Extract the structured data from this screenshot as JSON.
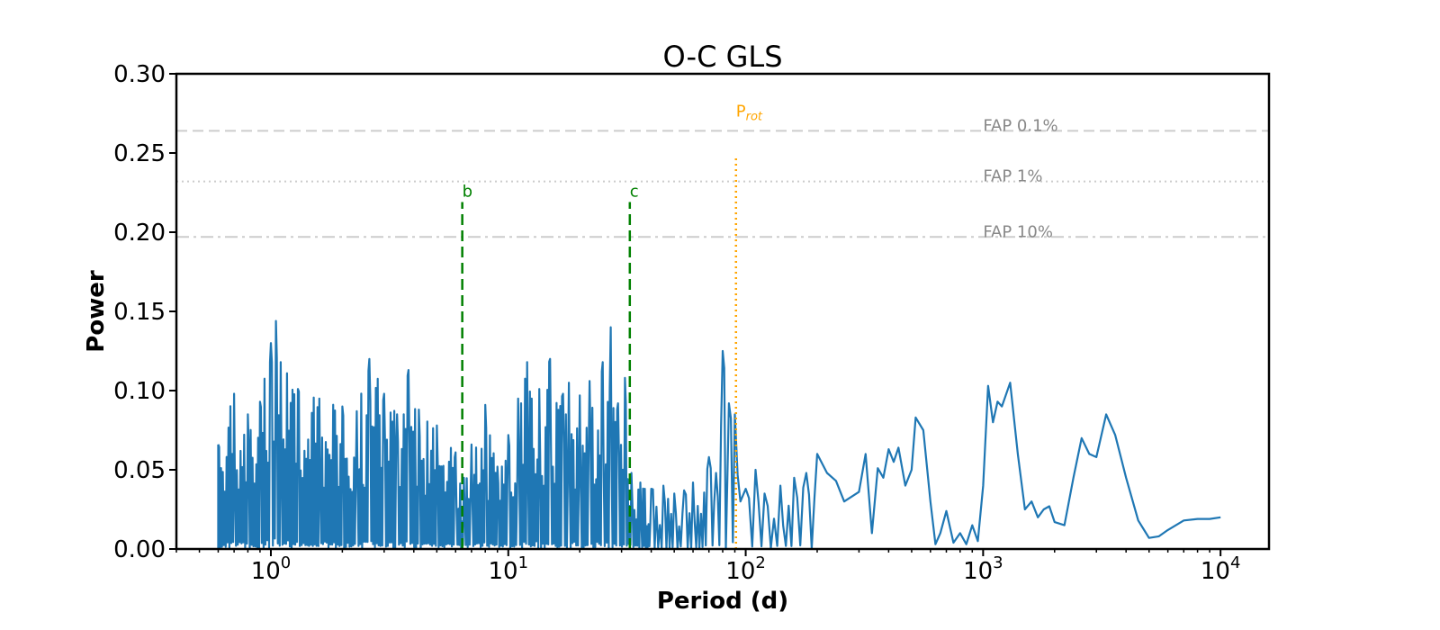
{
  "chart_data": {
    "type": "line",
    "title": "O-C GLS",
    "xlabel": "Period (d)",
    "ylabel": "Power",
    "xscale": "log",
    "xlim": [
      0.4,
      16000
    ],
    "ylim": [
      0,
      0.3
    ],
    "yticks": [
      "0.00",
      "0.05",
      "0.10",
      "0.15",
      "0.20",
      "0.25",
      "0.30"
    ],
    "yticks_values": [
      0,
      0.05,
      0.1,
      0.15,
      0.2,
      0.25,
      0.3
    ],
    "xticks": [
      {
        "base": "10",
        "exp": "0",
        "value": 1
      },
      {
        "base": "10",
        "exp": "1",
        "value": 10
      },
      {
        "base": "10",
        "exp": "2",
        "value": 100
      },
      {
        "base": "10",
        "exp": "3",
        "value": 1000
      },
      {
        "base": "10",
        "exp": "4",
        "value": 10000
      }
    ],
    "grid": false,
    "fap_levels": [
      {
        "label": "FAP 0.1%",
        "value": 0.264,
        "style": "dashed"
      },
      {
        "label": "FAP 1%",
        "value": 0.232,
        "style": "dotted"
      },
      {
        "label": "FAP 10%",
        "value": 0.197,
        "style": "dashdot"
      }
    ],
    "markers": [
      {
        "label": "b",
        "period": 6.4,
        "ymax": 0.219,
        "style": "dashed",
        "color": "#008000"
      },
      {
        "label": "c",
        "period": 32.5,
        "ymax": 0.219,
        "style": "dashed",
        "color": "#008000"
      },
      {
        "label": "P",
        "sub": "rot",
        "period": 91,
        "ymax": 0.248,
        "style": "dotted",
        "color": "#FFA500"
      }
    ],
    "series": [
      {
        "color": "#1f77b4",
        "x": [
          0.6,
          0.7,
          0.8,
          0.9,
          1.0,
          1.05,
          1.1,
          1.3,
          1.6,
          2.0,
          2.3,
          2.6,
          3.0,
          3.4,
          3.8,
          4.2,
          5.0,
          6.0,
          6.5,
          7.0,
          8.0,
          9.0,
          10.0,
          11.0,
          12.0,
          13.5,
          15.0,
          17.0,
          18.0,
          20.0,
          22.0,
          25.0,
          27.0,
          29.0,
          31.0,
          33.0,
          36.0,
          40.0,
          45.0,
          50.0,
          55.0,
          60.0,
          70.0,
          75.0,
          80.0,
          85.0,
          90.0,
          95.0,
          100.0,
          110.0,
          120.0,
          140.0,
          160.0,
          180.0,
          200.0,
          220.0,
          240.0,
          260.0,
          300.0,
          320.0,
          340.0,
          360.0,
          380.0,
          400.0,
          420.0,
          440.0,
          470.0,
          500.0,
          520.0,
          560.0,
          600.0,
          630.0,
          660.0,
          700.0,
          750.0,
          800.0,
          850.0,
          900.0,
          950.0,
          1000.0,
          1050.0,
          1100.0,
          1150.0,
          1200.0,
          1300.0,
          1400.0,
          1500.0,
          1600.0,
          1700.0,
          1800.0,
          1900.0,
          2000.0,
          2200.0,
          2400.0,
          2600.0,
          2800.0,
          3000.0,
          3300.0,
          3600.0,
          4000.0,
          4500.0,
          5000.0,
          5500.0,
          6000.0,
          7000.0,
          8000.0,
          9000.0,
          10000.0
        ],
        "y": [
          0.066,
          0.098,
          0.085,
          0.093,
          0.13,
          0.144,
          0.118,
          0.101,
          0.095,
          0.09,
          0.087,
          0.12,
          0.098,
          0.085,
          0.113,
          0.088,
          0.078,
          0.061,
          0.045,
          0.066,
          0.091,
          0.052,
          0.072,
          0.095,
          0.118,
          0.101,
          0.12,
          0.098,
          0.105,
          0.097,
          0.106,
          0.118,
          0.14,
          0.092,
          0.108,
          0.048,
          0.042,
          0.038,
          0.04,
          0.035,
          0.037,
          0.042,
          0.058,
          0.048,
          0.125,
          0.092,
          0.085,
          0.03,
          0.038,
          0.05,
          0.035,
          0.04,
          0.045,
          0.048,
          0.06,
          0.048,
          0.043,
          0.03,
          0.036,
          0.06,
          0.01,
          0.051,
          0.045,
          0.063,
          0.055,
          0.064,
          0.04,
          0.05,
          0.083,
          0.075,
          0.03,
          0.003,
          0.01,
          0.024,
          0.004,
          0.01,
          0.003,
          0.015,
          0.005,
          0.04,
          0.103,
          0.08,
          0.093,
          0.09,
          0.105,
          0.06,
          0.025,
          0.03,
          0.02,
          0.025,
          0.027,
          0.017,
          0.015,
          0.045,
          0.07,
          0.06,
          0.058,
          0.085,
          0.072,
          0.045,
          0.018,
          0.007,
          0.008,
          0.012,
          0.018,
          0.019,
          0.019,
          0.02
        ]
      }
    ]
  }
}
